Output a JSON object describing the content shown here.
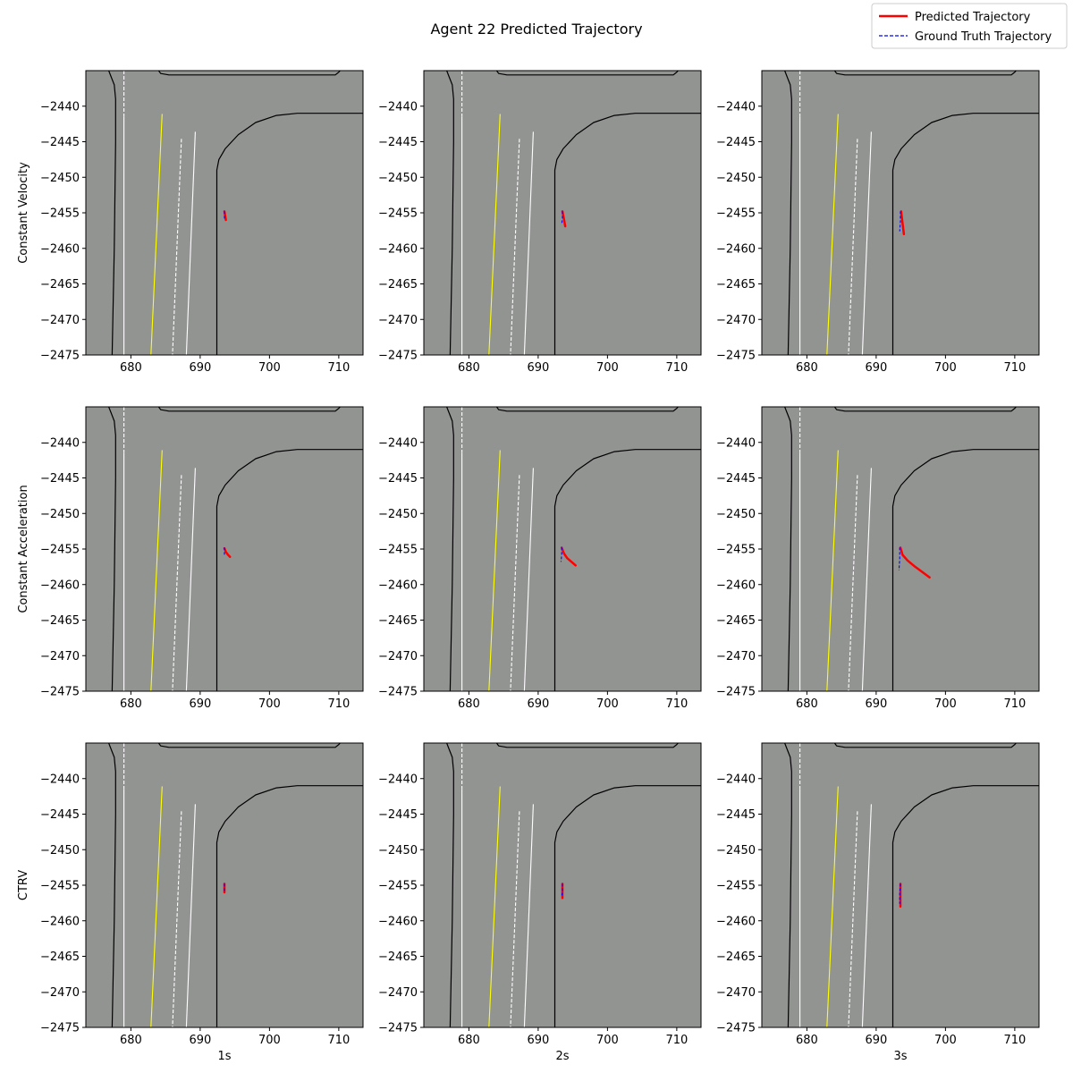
{
  "title": "Agent 22 Predicted Trajectory",
  "legend": {
    "placement": "top-right",
    "entries": [
      {
        "label": "Predicted Trajectory",
        "color": "#ff0000",
        "style": "solid"
      },
      {
        "label": "Ground Truth Trajectory",
        "color": "#0000ff",
        "style": "dashed"
      }
    ]
  },
  "chart_data": {
    "type": "line",
    "grid": false,
    "background_color": "#929492",
    "xlim": [
      673.5,
      713.5
    ],
    "ylim": [
      -2475,
      -2435
    ],
    "xticks": [
      680,
      690,
      700,
      710
    ],
    "yticks": [
      -2440,
      -2445,
      -2450,
      -2455,
      -2460,
      -2465,
      -2470,
      -2475
    ],
    "rows": [
      "Constant Velocity",
      "Constant Acceleration",
      "CTRV"
    ],
    "cols": [
      "1s",
      "2s",
      "3s"
    ],
    "map_lines": [
      {
        "color": "#000000",
        "style": "solid",
        "points": [
          [
            676.8,
            -2435
          ],
          [
            677.2,
            -2436
          ],
          [
            677.6,
            -2437
          ],
          [
            677.8,
            -2439
          ],
          [
            677.8,
            -2445
          ],
          [
            677.6,
            -2460
          ],
          [
            677.3,
            -2475
          ]
        ]
      },
      {
        "color": "#000000",
        "style": "solid",
        "points": [
          [
            692.4,
            -2475
          ],
          [
            692.4,
            -2449
          ],
          [
            692.7,
            -2447.5
          ],
          [
            693.6,
            -2446
          ],
          [
            695.5,
            -2444
          ],
          [
            698,
            -2442.3
          ],
          [
            701,
            -2441.3
          ],
          [
            704,
            -2441
          ],
          [
            713.5,
            -2441
          ]
        ]
      },
      {
        "color": "#000000",
        "style": "solid",
        "points": [
          [
            684,
            -2435
          ],
          [
            684.3,
            -2435.4
          ],
          [
            685.5,
            -2435.6
          ],
          [
            709.5,
            -2435.6
          ],
          [
            710,
            -2435.2
          ],
          [
            710.2,
            -2435
          ]
        ]
      },
      {
        "color": "#ffffff",
        "style": "dashed",
        "points": [
          [
            679,
            -2435
          ],
          [
            679,
            -2441.5
          ]
        ]
      },
      {
        "color": "#ffffff",
        "style": "solid",
        "points": [
          [
            679,
            -2441.5
          ],
          [
            679,
            -2475
          ]
        ]
      },
      {
        "color": "#ffff00",
        "style": "solid",
        "points": [
          [
            684.5,
            -2441.1
          ],
          [
            682.9,
            -2475
          ]
        ]
      },
      {
        "color": "#ffffff",
        "style": "dashed",
        "points": [
          [
            687.3,
            -2444.6
          ],
          [
            686,
            -2475
          ]
        ]
      },
      {
        "color": "#ffffff",
        "style": "solid",
        "points": [
          [
            689.3,
            -2443.6
          ],
          [
            688,
            -2475
          ]
        ]
      }
    ],
    "panels": [
      {
        "model": "Constant Velocity",
        "horizon": "1s",
        "predicted": [
          [
            693.5,
            -2454.8
          ],
          [
            693.6,
            -2455.4
          ],
          [
            693.7,
            -2456
          ]
        ],
        "ground_truth": [
          [
            693.5,
            -2454.8
          ],
          [
            693.5,
            -2455.4
          ],
          [
            693.5,
            -2455.8
          ]
        ]
      },
      {
        "model": "Constant Velocity",
        "horizon": "2s",
        "predicted": [
          [
            693.5,
            -2454.8
          ],
          [
            693.7,
            -2455.8
          ],
          [
            693.9,
            -2456.9
          ]
        ],
        "ground_truth": [
          [
            693.5,
            -2454.8
          ],
          [
            693.5,
            -2455.8
          ],
          [
            693.4,
            -2456.6
          ]
        ]
      },
      {
        "model": "Constant Velocity",
        "horizon": "3s",
        "predicted": [
          [
            693.6,
            -2454.8
          ],
          [
            693.8,
            -2456.4
          ],
          [
            694,
            -2458
          ]
        ],
        "ground_truth": [
          [
            693.5,
            -2454.8
          ],
          [
            693.5,
            -2456.2
          ],
          [
            693.4,
            -2457.6
          ]
        ]
      },
      {
        "model": "Constant Acceleration",
        "horizon": "1s",
        "predicted": [
          [
            693.5,
            -2454.9
          ],
          [
            693.7,
            -2455.4
          ],
          [
            694,
            -2455.8
          ],
          [
            694.3,
            -2456.1
          ]
        ],
        "ground_truth": [
          [
            693.5,
            -2454.8
          ],
          [
            693.5,
            -2455.4
          ],
          [
            693.5,
            -2455.8
          ]
        ]
      },
      {
        "model": "Constant Acceleration",
        "horizon": "2s",
        "predicted": [
          [
            693.4,
            -2454.8
          ],
          [
            693.7,
            -2455.6
          ],
          [
            694.2,
            -2456.3
          ],
          [
            694.8,
            -2456.8
          ],
          [
            695.4,
            -2457.3
          ]
        ],
        "ground_truth": [
          [
            693.4,
            -2454.8
          ],
          [
            693.4,
            -2455.8
          ],
          [
            693.3,
            -2456.8
          ]
        ]
      },
      {
        "model": "Constant Acceleration",
        "horizon": "3s",
        "predicted": [
          [
            693.5,
            -2454.8
          ],
          [
            693.8,
            -2455.8
          ],
          [
            694.5,
            -2456.6
          ],
          [
            695.5,
            -2457.4
          ],
          [
            696.6,
            -2458.2
          ],
          [
            697.7,
            -2459
          ]
        ],
        "ground_truth": [
          [
            693.4,
            -2454.8
          ],
          [
            693.4,
            -2456.4
          ],
          [
            693.3,
            -2458
          ]
        ]
      },
      {
        "model": "CTRV",
        "horizon": "1s",
        "predicted": [
          [
            693.5,
            -2454.8
          ],
          [
            693.5,
            -2455.4
          ],
          [
            693.5,
            -2456
          ]
        ],
        "ground_truth": [
          [
            693.5,
            -2454.8
          ],
          [
            693.5,
            -2455.4
          ],
          [
            693.5,
            -2455.8
          ]
        ]
      },
      {
        "model": "CTRV",
        "horizon": "2s",
        "predicted": [
          [
            693.5,
            -2454.8
          ],
          [
            693.5,
            -2455.8
          ],
          [
            693.5,
            -2456.8
          ]
        ],
        "ground_truth": [
          [
            693.5,
            -2454.8
          ],
          [
            693.5,
            -2455.8
          ],
          [
            693.4,
            -2456.6
          ]
        ]
      },
      {
        "model": "CTRV",
        "horizon": "3s",
        "predicted": [
          [
            693.5,
            -2454.8
          ],
          [
            693.5,
            -2456.4
          ],
          [
            693.5,
            -2458
          ]
        ],
        "ground_truth": [
          [
            693.5,
            -2454.8
          ],
          [
            693.4,
            -2456.2
          ],
          [
            693.4,
            -2457.6
          ]
        ]
      }
    ]
  }
}
